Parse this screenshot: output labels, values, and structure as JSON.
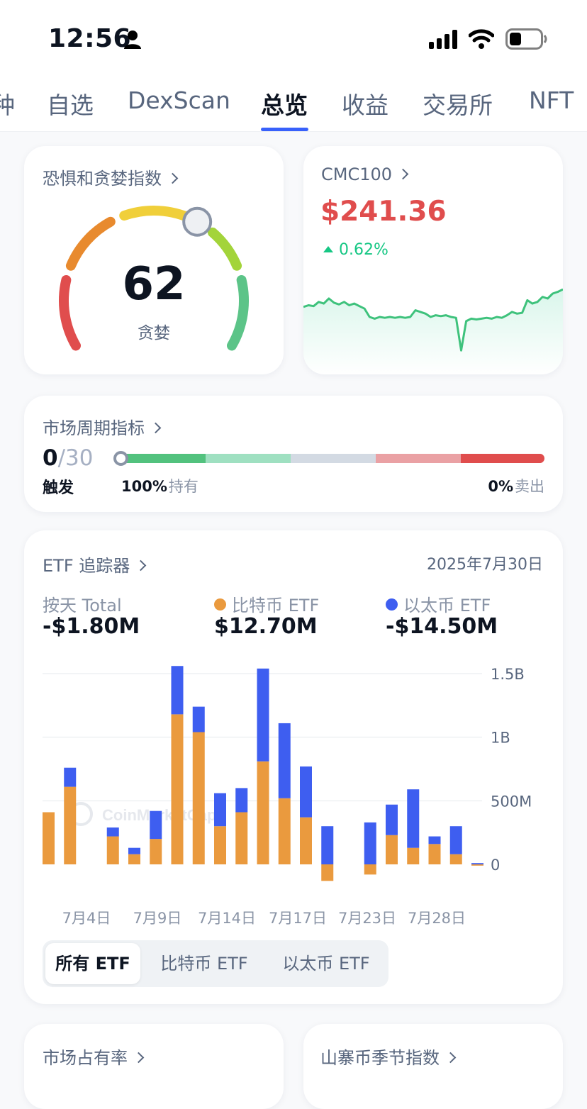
{
  "status": {
    "time": "12:56"
  },
  "tabs": [
    {
      "label": "种"
    },
    {
      "label": "自选"
    },
    {
      "label": "DexScan"
    },
    {
      "label": "总览"
    },
    {
      "label": "收益"
    },
    {
      "label": "交易所"
    },
    {
      "label": "NFT"
    }
  ],
  "fear_greed": {
    "title": "恐惧和贪婪指数",
    "value": "62",
    "label": "贪婪",
    "gauge_fraction": 0.62,
    "colors": [
      "#e04d4d",
      "#e88a2e",
      "#f0cf3a",
      "#a3d43a",
      "#5cc488"
    ]
  },
  "cmc100": {
    "title": "CMC100",
    "price": "$241.36",
    "change": "0.62%",
    "price_color": "#e04d4d",
    "change_color": "#16c784",
    "sparkline": [
      0.62,
      0.64,
      0.63,
      0.68,
      0.66,
      0.72,
      0.67,
      0.65,
      0.68,
      0.64,
      0.66,
      0.63,
      0.6,
      0.5,
      0.48,
      0.5,
      0.49,
      0.5,
      0.49,
      0.5,
      0.49,
      0.5,
      0.58,
      0.56,
      0.54,
      0.5,
      0.52,
      0.51,
      0.52,
      0.5,
      0.49,
      0.1,
      0.45,
      0.48,
      0.47,
      0.48,
      0.49,
      0.48,
      0.5,
      0.49,
      0.52,
      0.56,
      0.54,
      0.55,
      0.7,
      0.66,
      0.68,
      0.74,
      0.72,
      0.78,
      0.8,
      0.83
    ]
  },
  "market_cycle": {
    "title": "市场周期指标",
    "count": "0",
    "total": "/30",
    "trigger_label": "触发",
    "hold_pct": "100%",
    "hold_label": "持有",
    "sell_pct": "0%",
    "sell_label": "卖出",
    "segment_colors": [
      "#52c27e",
      "#9fe0c1",
      "#d3dae3",
      "#eaa1a4",
      "#e04d4d"
    ]
  },
  "etf": {
    "title": "ETF 追踪器",
    "date": "2025年7月30日",
    "total_label": "按天 Total",
    "total_value": "-$1.80M",
    "btc_label": "比特币 ETF",
    "btc_value": "$12.70M",
    "eth_label": "以太币 ETF",
    "eth_value": "-$14.50M",
    "btc_color": "#ea9a3e",
    "eth_color": "#3e5ef0",
    "filters": [
      "所有 ETF",
      "比特币 ETF",
      "以太币 ETF"
    ],
    "watermark": "CoinMarketCap"
  },
  "bottom_cards": {
    "left_title": "市场占有率",
    "right_title": "山寨币季节指数"
  },
  "chart_data": {
    "type": "bar",
    "stacked": true,
    "ylim": [
      -250000000,
      1500000000
    ],
    "y_ticks": [
      {
        "value": 1500000000,
        "label": "1.5B"
      },
      {
        "value": 1000000000,
        "label": "1B"
      },
      {
        "value": 500000000,
        "label": "500M"
      },
      {
        "value": 0,
        "label": "0"
      }
    ],
    "x_tick_labels": [
      "7月4日",
      "7月9日",
      "7月14日",
      "7月17日",
      "7月23日",
      "7月28日"
    ],
    "series": [
      {
        "name": "比特币 ETF",
        "values": [
          410000000,
          610000000,
          0,
          220000000,
          80000000,
          200000000,
          1180000000,
          1040000000,
          300000000,
          410000000,
          810000000,
          520000000,
          370000000,
          -130000000,
          0,
          -80000000,
          230000000,
          130000000,
          160000000,
          80000000,
          -10000000
        ]
      },
      {
        "name": "以太币 ETF",
        "values": [
          0,
          150000000,
          0,
          70000000,
          50000000,
          220000000,
          380000000,
          200000000,
          260000000,
          190000000,
          730000000,
          590000000,
          400000000,
          300000000,
          0,
          330000000,
          240000000,
          460000000,
          60000000,
          220000000,
          10000000
        ]
      }
    ]
  }
}
